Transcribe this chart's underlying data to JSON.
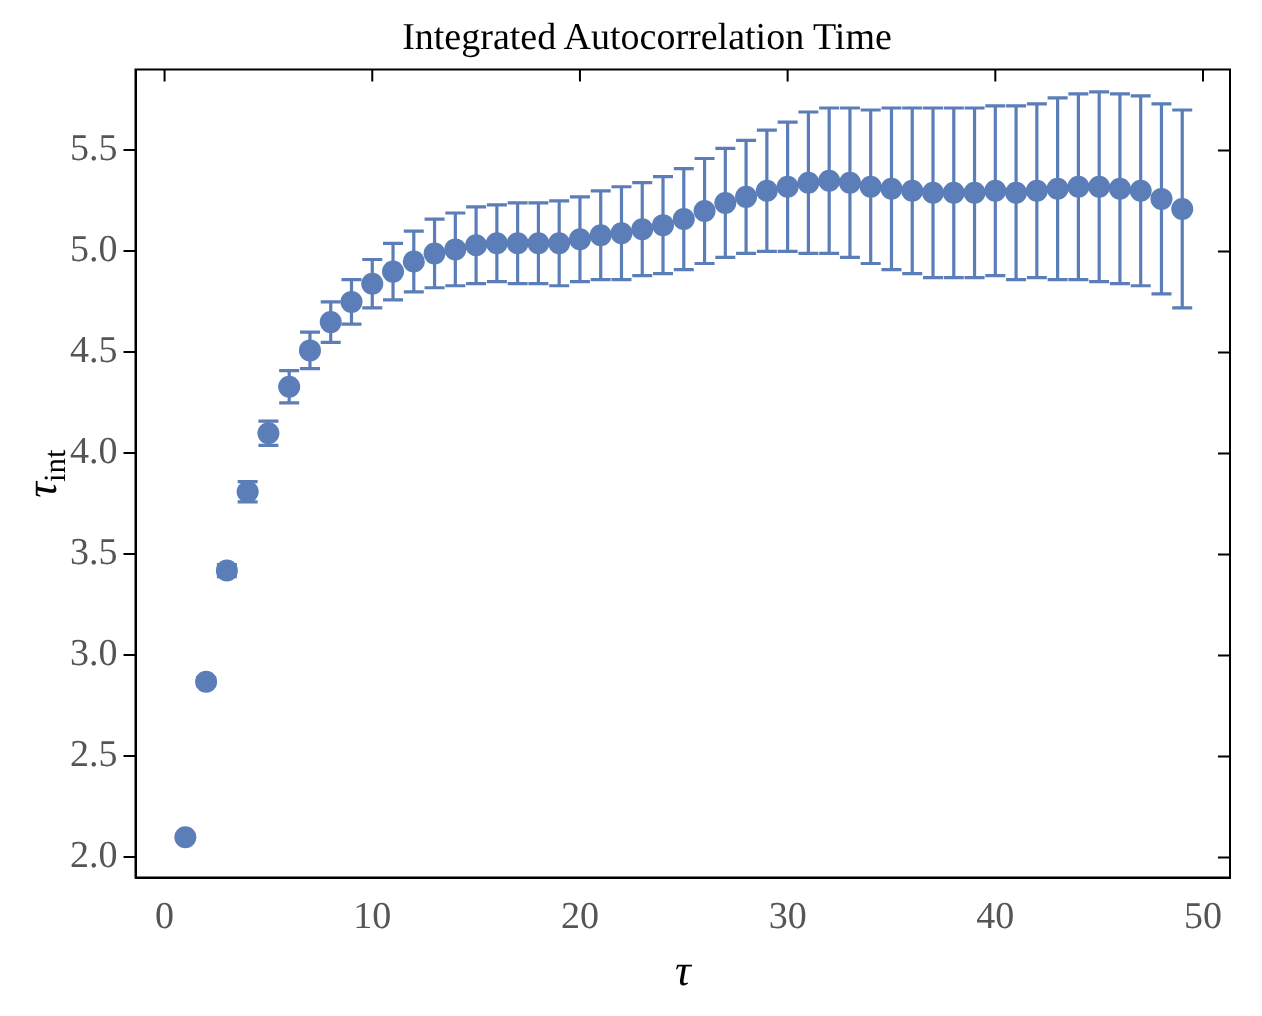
{
  "chart_data": {
    "type": "scatter",
    "title": "Integrated Autocorrelation Time",
    "xlabel": "τ",
    "ylabel": "τ$_{int}$",
    "x": [
      1,
      2,
      3,
      4,
      5,
      6,
      7,
      8,
      9,
      10,
      11,
      12,
      13,
      14,
      15,
      16,
      17,
      18,
      19,
      20,
      21,
      22,
      23,
      24,
      25,
      26,
      27,
      28,
      29,
      30,
      31,
      32,
      33,
      34,
      35,
      36,
      37,
      38,
      39,
      40,
      41,
      42,
      43,
      44,
      45,
      46,
      47,
      48,
      49
    ],
    "series": [
      {
        "color": "#5b7db8",
        "values": [
          2.1,
          2.87,
          3.42,
          3.81,
          4.1,
          4.33,
          4.51,
          4.65,
          4.75,
          4.84,
          4.9,
          4.95,
          4.99,
          5.01,
          5.03,
          5.04,
          5.04,
          5.04,
          5.04,
          5.06,
          5.08,
          5.09,
          5.11,
          5.13,
          5.16,
          5.2,
          5.24,
          5.27,
          5.3,
          5.32,
          5.34,
          5.35,
          5.34,
          5.32,
          5.31,
          5.3,
          5.29,
          5.29,
          5.29,
          5.3,
          5.29,
          5.3,
          5.31,
          5.32,
          5.32,
          5.31,
          5.3,
          5.26,
          5.21
        ],
        "errors": [
          0.01,
          0.02,
          0.03,
          0.05,
          0.06,
          0.08,
          0.09,
          0.1,
          0.11,
          0.12,
          0.14,
          0.15,
          0.17,
          0.18,
          0.19,
          0.19,
          0.2,
          0.2,
          0.21,
          0.21,
          0.22,
          0.23,
          0.23,
          0.24,
          0.25,
          0.26,
          0.27,
          0.28,
          0.3,
          0.32,
          0.35,
          0.36,
          0.37,
          0.38,
          0.4,
          0.41,
          0.42,
          0.42,
          0.42,
          0.42,
          0.43,
          0.43,
          0.45,
          0.46,
          0.47,
          0.47,
          0.47,
          0.47,
          0.49
        ]
      }
    ],
    "xlim": [
      -1.4,
      51.3
    ],
    "xticks": [
      0,
      10,
      20,
      30,
      40,
      50
    ],
    "ylim": [
      1.9,
      5.9
    ],
    "yticks": [
      {
        "value": 2,
        "label": "2.0"
      },
      {
        "value": 2.5,
        "label": "2.5"
      },
      {
        "value": 3,
        "label": "3.0"
      },
      {
        "value": 3.5,
        "label": "3.5"
      },
      {
        "value": 4,
        "label": "4.0"
      },
      {
        "value": 4.5,
        "label": "4.5"
      },
      {
        "value": 5,
        "label": "5.0"
      },
      {
        "value": 5.5,
        "label": "5.5"
      }
    ],
    "grid": false,
    "marker": "circle"
  }
}
